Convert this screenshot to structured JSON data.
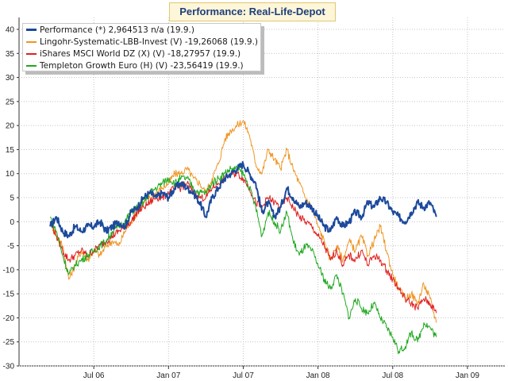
{
  "title": "Performance: Real-Life-Depot",
  "chart_data": {
    "type": "line",
    "ylim": [
      -30,
      40
    ],
    "yticks": [
      40,
      35,
      30,
      25,
      20,
      15,
      10,
      5,
      0,
      -5,
      -10,
      -15,
      -20,
      -25,
      -30
    ],
    "x_months_range": [
      0,
      39
    ],
    "xticks": [
      {
        "label": "Jul 06",
        "month": 6
      },
      {
        "label": "Jan 07",
        "month": 12
      },
      {
        "label": "Jul 07",
        "month": 18
      },
      {
        "label": "Jan 08",
        "month": 24
      },
      {
        "label": "Jul 08",
        "month": 30
      },
      {
        "label": "Jan 09",
        "month": 36
      }
    ],
    "grid": true,
    "legend_position": "top-left",
    "series": [
      {
        "name": "Performance (*) 2,964513 n/a (19.9.)",
        "color": "#1c4a9c",
        "width": 2,
        "points": [
          [
            2.5,
            -1
          ],
          [
            3,
            1
          ],
          [
            3.5,
            -2
          ],
          [
            4,
            -3
          ],
          [
            4.5,
            -1
          ],
          [
            5,
            -2
          ],
          [
            5.5,
            -1
          ],
          [
            6,
            -1
          ],
          [
            6.5,
            0
          ],
          [
            7,
            -2
          ],
          [
            7.5,
            -1
          ],
          [
            8,
            0
          ],
          [
            8.5,
            -1
          ],
          [
            9,
            2
          ],
          [
            9.5,
            3
          ],
          [
            10,
            5
          ],
          [
            10.5,
            6
          ],
          [
            11,
            5
          ],
          [
            11.5,
            6
          ],
          [
            12,
            5
          ],
          [
            12.5,
            7
          ],
          [
            13,
            8
          ],
          [
            13.5,
            7
          ],
          [
            14,
            6
          ],
          [
            14.5,
            4
          ],
          [
            15,
            1
          ],
          [
            15.5,
            5
          ],
          [
            16,
            7
          ],
          [
            16.5,
            9
          ],
          [
            17,
            10
          ],
          [
            17.5,
            11
          ],
          [
            18,
            12
          ],
          [
            18.5,
            10
          ],
          [
            19,
            8
          ],
          [
            19.5,
            2
          ],
          [
            20,
            4
          ],
          [
            20.5,
            1
          ],
          [
            21,
            3
          ],
          [
            21.5,
            7
          ],
          [
            22,
            5
          ],
          [
            22.5,
            3
          ],
          [
            23,
            4
          ],
          [
            23.5,
            3
          ],
          [
            24,
            1
          ],
          [
            24.5,
            -1
          ],
          [
            25,
            -2
          ],
          [
            25.5,
            1
          ],
          [
            26,
            -1
          ],
          [
            26.5,
            0
          ],
          [
            27,
            2
          ],
          [
            27.5,
            1
          ],
          [
            28,
            4
          ],
          [
            28.5,
            3
          ],
          [
            29,
            5
          ],
          [
            29.5,
            4
          ],
          [
            30,
            2
          ],
          [
            30.5,
            1
          ],
          [
            31,
            0
          ],
          [
            31.5,
            2
          ],
          [
            32,
            4
          ],
          [
            32.5,
            3
          ],
          [
            33,
            4
          ],
          [
            33.5,
            1
          ]
        ]
      },
      {
        "name": "Lingohr-Systematic-LBB-Invest (V) -19,26068 (19.9.)",
        "color": "#ef9523",
        "width": 1,
        "points": [
          [
            2.5,
            0
          ],
          [
            3,
            -3
          ],
          [
            3.5,
            -5
          ],
          [
            4,
            -12
          ],
          [
            4.5,
            -9
          ],
          [
            5,
            -6
          ],
          [
            5.5,
            -8
          ],
          [
            6,
            -6
          ],
          [
            6.5,
            -7
          ],
          [
            7,
            -5
          ],
          [
            7.5,
            -4
          ],
          [
            8,
            -5
          ],
          [
            8.5,
            -2
          ],
          [
            9,
            0
          ],
          [
            9.5,
            2
          ],
          [
            10,
            4
          ],
          [
            10.5,
            5
          ],
          [
            11,
            6
          ],
          [
            11.5,
            7
          ],
          [
            12,
            8
          ],
          [
            12.5,
            10
          ],
          [
            13,
            10
          ],
          [
            13.5,
            11
          ],
          [
            14,
            9
          ],
          [
            14.5,
            8
          ],
          [
            15,
            6
          ],
          [
            15.5,
            9
          ],
          [
            16,
            12
          ],
          [
            16.5,
            17
          ],
          [
            17,
            19
          ],
          [
            17.5,
            20
          ],
          [
            18,
            21
          ],
          [
            18.5,
            18
          ],
          [
            19,
            12
          ],
          [
            19.5,
            10
          ],
          [
            20,
            15
          ],
          [
            20.5,
            13
          ],
          [
            21,
            11
          ],
          [
            21.5,
            15
          ],
          [
            22,
            11
          ],
          [
            22.5,
            8
          ],
          [
            23,
            5
          ],
          [
            23.5,
            3
          ],
          [
            24,
            -1
          ],
          [
            24.5,
            -4
          ],
          [
            25,
            -8
          ],
          [
            25.5,
            -5
          ],
          [
            26,
            -8
          ],
          [
            26.5,
            -4
          ],
          [
            27,
            -6
          ],
          [
            27.5,
            -3
          ],
          [
            28,
            -7
          ],
          [
            28.5,
            -4
          ],
          [
            29,
            -1
          ],
          [
            29.5,
            -6
          ],
          [
            30,
            -11
          ],
          [
            30.5,
            -14
          ],
          [
            31,
            -16
          ],
          [
            31.5,
            -15
          ],
          [
            32,
            -17
          ],
          [
            32.5,
            -13
          ],
          [
            33,
            -16
          ],
          [
            33.5,
            -21
          ]
        ]
      },
      {
        "name": "iShares MSCI World DZ (X) (V) -18,27957 (19.9.)",
        "color": "#e02020",
        "width": 1,
        "points": [
          [
            2.5,
            0
          ],
          [
            3,
            -3
          ],
          [
            3.5,
            -6
          ],
          [
            4,
            -8
          ],
          [
            4.5,
            -7
          ],
          [
            5,
            -6
          ],
          [
            5.5,
            -7
          ],
          [
            6,
            -6
          ],
          [
            6.5,
            -5
          ],
          [
            7,
            -4
          ],
          [
            7.5,
            -3
          ],
          [
            8,
            -2
          ],
          [
            8.5,
            -1
          ],
          [
            9,
            0
          ],
          [
            9.5,
            2
          ],
          [
            10,
            3
          ],
          [
            10.5,
            4
          ],
          [
            11,
            5
          ],
          [
            11.5,
            5
          ],
          [
            12,
            6
          ],
          [
            12.5,
            7
          ],
          [
            13,
            7
          ],
          [
            13.5,
            8
          ],
          [
            14,
            6
          ],
          [
            14.5,
            5
          ],
          [
            15,
            5
          ],
          [
            15.5,
            7
          ],
          [
            16,
            8
          ],
          [
            16.5,
            9
          ],
          [
            17,
            10
          ],
          [
            17.5,
            10
          ],
          [
            18,
            9
          ],
          [
            18.5,
            7
          ],
          [
            19,
            4
          ],
          [
            19.5,
            3
          ],
          [
            20,
            5
          ],
          [
            20.5,
            4
          ],
          [
            21,
            3
          ],
          [
            21.5,
            5
          ],
          [
            22,
            3
          ],
          [
            22.5,
            1
          ],
          [
            23,
            0
          ],
          [
            23.5,
            -1
          ],
          [
            24,
            -3
          ],
          [
            24.5,
            -5
          ],
          [
            25,
            -8
          ],
          [
            25.5,
            -6
          ],
          [
            26,
            -9
          ],
          [
            26.5,
            -7
          ],
          [
            27,
            -8
          ],
          [
            27.5,
            -6
          ],
          [
            28,
            -9
          ],
          [
            28.5,
            -7
          ],
          [
            29,
            -8
          ],
          [
            29.5,
            -10
          ],
          [
            30,
            -12
          ],
          [
            30.5,
            -14
          ],
          [
            31,
            -16
          ],
          [
            31.5,
            -17
          ],
          [
            32,
            -18
          ],
          [
            32.5,
            -16
          ],
          [
            33,
            -17
          ],
          [
            33.5,
            -19
          ]
        ]
      },
      {
        "name": "Templeton Growth Euro (H) (V) -23,56419 (19.9.)",
        "color": "#1fa81f",
        "width": 1,
        "points": [
          [
            2.5,
            1
          ],
          [
            3,
            -2
          ],
          [
            3.5,
            -7
          ],
          [
            4,
            -11
          ],
          [
            4.5,
            -9
          ],
          [
            5,
            -8
          ],
          [
            5.5,
            -7
          ],
          [
            6,
            -6
          ],
          [
            6.5,
            -5
          ],
          [
            7,
            -4
          ],
          [
            7.5,
            -2
          ],
          [
            8,
            -1
          ],
          [
            8.5,
            0
          ],
          [
            9,
            2
          ],
          [
            9.5,
            3
          ],
          [
            10,
            4
          ],
          [
            10.5,
            6
          ],
          [
            11,
            7
          ],
          [
            11.5,
            8
          ],
          [
            12,
            9
          ],
          [
            12.5,
            8
          ],
          [
            13,
            9
          ],
          [
            13.5,
            9
          ],
          [
            14,
            7
          ],
          [
            14.5,
            6
          ],
          [
            15,
            6
          ],
          [
            15.5,
            8
          ],
          [
            16,
            9
          ],
          [
            16.5,
            10
          ],
          [
            17,
            11
          ],
          [
            17.5,
            11
          ],
          [
            18,
            10
          ],
          [
            18.5,
            7
          ],
          [
            19,
            3
          ],
          [
            19.5,
            -3
          ],
          [
            20,
            2
          ],
          [
            20.5,
            0
          ],
          [
            21,
            -2
          ],
          [
            21.5,
            2
          ],
          [
            22,
            -4
          ],
          [
            22.5,
            -7
          ],
          [
            23,
            -5
          ],
          [
            23.5,
            -6
          ],
          [
            24,
            -9
          ],
          [
            24.5,
            -12
          ],
          [
            25,
            -14
          ],
          [
            25.5,
            -11
          ],
          [
            26,
            -15
          ],
          [
            26.5,
            -20
          ],
          [
            27,
            -16
          ],
          [
            27.5,
            -18
          ],
          [
            28,
            -19
          ],
          [
            28.5,
            -17
          ],
          [
            29,
            -20
          ],
          [
            29.5,
            -22
          ],
          [
            30,
            -24
          ],
          [
            30.5,
            -27
          ],
          [
            31,
            -26
          ],
          [
            31.5,
            -23
          ],
          [
            32,
            -25
          ],
          [
            32.5,
            -21
          ],
          [
            33,
            -22
          ],
          [
            33.5,
            -24
          ]
        ]
      }
    ]
  }
}
